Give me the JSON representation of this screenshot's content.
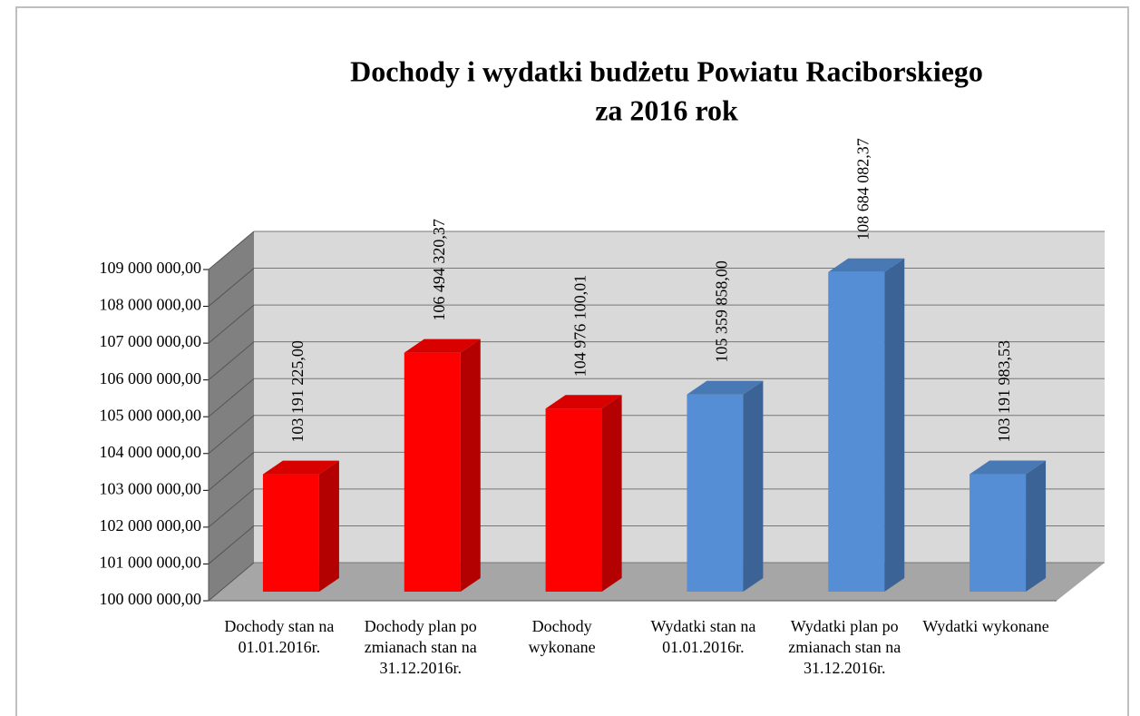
{
  "chart_data": {
    "type": "bar3d",
    "title": [
      "Dochody i wydatki  budżetu Powiatu Raciborskiego",
      "za 2016 rok"
    ],
    "categories": [
      "Dochody stan na 01.01.2016r.",
      "Dochody plan po zmianach stan na 31.12.2016r.",
      "Dochody wykonane",
      "Wydatki stan na 01.01.2016r.",
      "Wydatki plan po zmianach stan na 31.12.2016r.",
      "Wydatki wykonane"
    ],
    "values": [
      103191225.0,
      106494320.37,
      104976100.01,
      105359858.0,
      108684082.37,
      103191983.53
    ],
    "value_labels": [
      "103 191 225,00",
      "106 494 320,37",
      "104 976 100,01",
      "105 359 858,00",
      "108 684 082,37",
      "103 191 983,53"
    ],
    "colors": [
      "#ff0000",
      "#ff0000",
      "#ff0000",
      "#558ed5",
      "#558ed5",
      "#558ed5"
    ],
    "ylim": [
      100000000,
      109000000
    ],
    "yticks": [
      {
        "value": 100000000,
        "label": "100 000 000,00"
      },
      {
        "value": 101000000,
        "label": "101 000 000,00"
      },
      {
        "value": 102000000,
        "label": "102 000 000,00"
      },
      {
        "value": 103000000,
        "label": "103 000 000,00"
      },
      {
        "value": 104000000,
        "label": "104 000 000,00"
      },
      {
        "value": 105000000,
        "label": "105 000 000,00"
      },
      {
        "value": 106000000,
        "label": "106 000 000,00"
      },
      {
        "value": 107000000,
        "label": "107 000 000,00"
      },
      {
        "value": 108000000,
        "label": "108 000 000,00"
      },
      {
        "value": 109000000,
        "label": "109 000 000,00"
      }
    ],
    "grid": true
  }
}
